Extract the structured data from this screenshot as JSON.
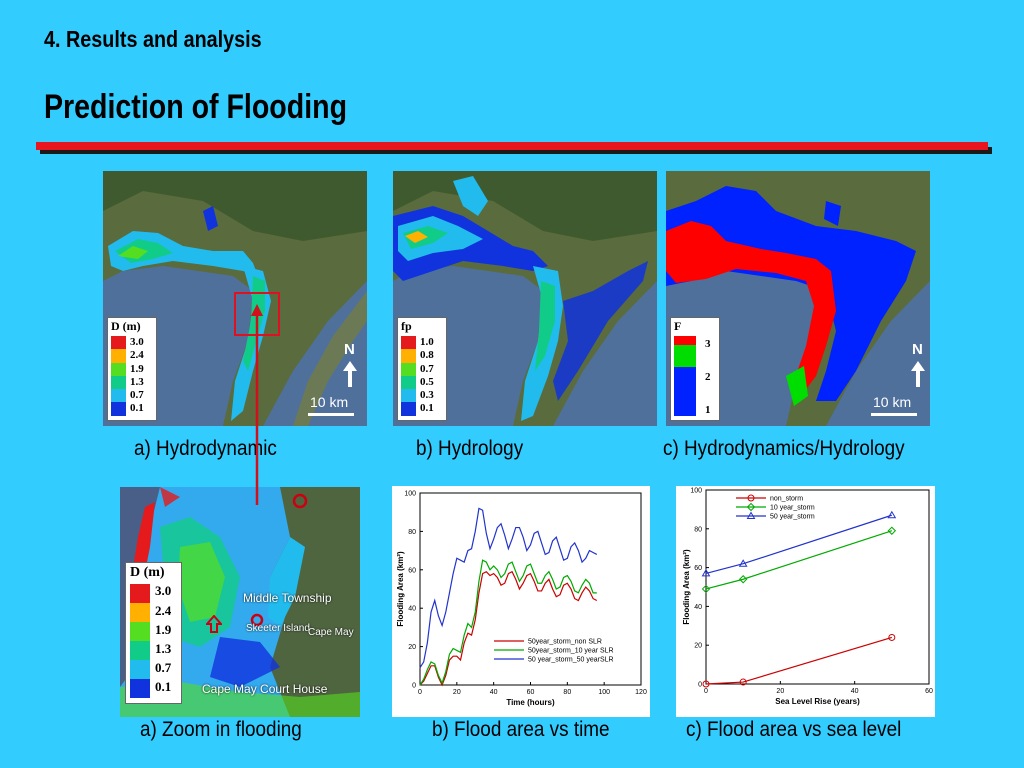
{
  "header": {
    "section": "4. Results and analysis",
    "title": "Prediction of Flooding"
  },
  "maps": [
    {
      "caption": "a) Hydrodynamic",
      "legend_title": "D (m)",
      "legend_values": [
        "3.0",
        "2.4",
        "1.9",
        "1.3",
        "0.7",
        "0.1"
      ],
      "legend_colors": [
        "#e41a1c",
        "#ffb000",
        "#55dd22",
        "#11cc88",
        "#22bbee",
        "#1133dd"
      ],
      "north_label": "N",
      "scale_label": "10 km"
    },
    {
      "caption": "b)  Hydrology",
      "legend_title": "fp",
      "legend_values": [
        "1.0",
        "0.8",
        "0.7",
        "0.5",
        "0.3",
        "0.1"
      ],
      "legend_colors": [
        "#e41a1c",
        "#ffb000",
        "#55dd22",
        "#11cc88",
        "#22bbee",
        "#1133dd"
      ]
    },
    {
      "caption": "c) Hydrodynamics/Hydrology",
      "legend_title": "F",
      "legend_values": [
        "3",
        "2",
        "1"
      ],
      "legend_colors": [
        "#ff0000",
        "#00dd00",
        "#0022ff"
      ],
      "north_label": "N",
      "scale_label": "10 km"
    }
  ],
  "zoom_map": {
    "caption": "a) Zoom in flooding",
    "legend_title": "D (m)",
    "legend_values": [
      "3.0",
      "2.4",
      "1.9",
      "1.3",
      "0.7",
      "0.1"
    ],
    "legend_colors": [
      "#e41a1c",
      "#ffb000",
      "#55dd22",
      "#11cc88",
      "#22bbee",
      "#1133dd"
    ],
    "places": [
      "Middle Township",
      "Skeeter Island",
      "Cape May",
      "Cape May Court House"
    ]
  },
  "chart_data": [
    {
      "type": "line",
      "caption": "b) Flood area vs time",
      "xlabel": "Time (hours)",
      "ylabel": "Flooding Area (km²)",
      "xlim": [
        0,
        120
      ],
      "ylim": [
        0,
        100
      ],
      "xticks": [
        0,
        20,
        40,
        60,
        80,
        100,
        120
      ],
      "yticks": [
        0,
        20,
        40,
        60,
        80,
        100
      ],
      "legend_position": "lower-right",
      "x": [
        0,
        2,
        4,
        6,
        8,
        10,
        12,
        14,
        16,
        18,
        20,
        22,
        24,
        26,
        28,
        30,
        32,
        34,
        36,
        38,
        40,
        42,
        44,
        46,
        48,
        50,
        52,
        54,
        56,
        58,
        60,
        62,
        64,
        66,
        68,
        70,
        72,
        74,
        76,
        78,
        80,
        82,
        84,
        86,
        88,
        90,
        92,
        94,
        96
      ],
      "series": [
        {
          "name": "50year_storm_non SLR",
          "color": "#cc0000",
          "values": [
            0,
            2,
            6,
            10,
            10,
            4,
            0,
            5,
            13,
            15,
            15,
            13,
            22,
            27,
            26,
            34,
            48,
            58,
            59,
            57,
            58,
            56,
            52,
            53,
            58,
            59,
            55,
            50,
            53,
            57,
            58,
            54,
            49,
            49,
            53,
            55,
            50,
            46,
            47,
            52,
            53,
            50,
            45,
            44,
            48,
            51,
            49,
            45,
            44
          ]
        },
        {
          "name": "50year_storm_10 year SLR",
          "color": "#00aa00",
          "values": [
            0,
            3,
            8,
            12,
            11,
            5,
            1,
            7,
            16,
            19,
            18,
            17,
            26,
            32,
            30,
            38,
            54,
            65,
            64,
            60,
            62,
            60,
            56,
            58,
            63,
            64,
            59,
            54,
            57,
            62,
            63,
            58,
            53,
            53,
            57,
            59,
            55,
            50,
            51,
            56,
            57,
            54,
            49,
            48,
            52,
            55,
            53,
            48,
            48
          ]
        },
        {
          "name": "50 year_storm_50 yearSLR",
          "color": "#2233cc",
          "values": [
            9,
            12,
            22,
            38,
            44,
            36,
            31,
            38,
            48,
            58,
            66,
            65,
            64,
            70,
            71,
            80,
            92,
            91,
            79,
            71,
            76,
            82,
            84,
            78,
            71,
            76,
            82,
            82,
            77,
            70,
            73,
            79,
            80,
            74,
            68,
            69,
            75,
            77,
            71,
            65,
            66,
            72,
            74,
            70,
            64,
            66,
            70,
            69,
            68
          ]
        }
      ]
    },
    {
      "type": "line",
      "caption": "c) Flood area vs sea level",
      "xlabel": "Sea Level Rise (years)",
      "ylabel": "Flooding Area (km²)",
      "xlim": [
        0,
        60
      ],
      "ylim": [
        0,
        100
      ],
      "xticks": [
        0,
        20,
        40,
        60
      ],
      "yticks": [
        0,
        20,
        40,
        60,
        80,
        100
      ],
      "legend_position": "upper-left",
      "x": [
        0,
        10,
        50
      ],
      "series": [
        {
          "name": "non_storm",
          "color": "#cc0000",
          "marker": "circle",
          "values": [
            0,
            1,
            24
          ]
        },
        {
          "name": "10 year_storm",
          "color": "#00aa00",
          "marker": "diamond",
          "values": [
            49,
            54,
            79
          ]
        },
        {
          "name": "50 year_storm",
          "color": "#2233cc",
          "marker": "triangle",
          "values": [
            57,
            62,
            87
          ]
        }
      ]
    }
  ]
}
